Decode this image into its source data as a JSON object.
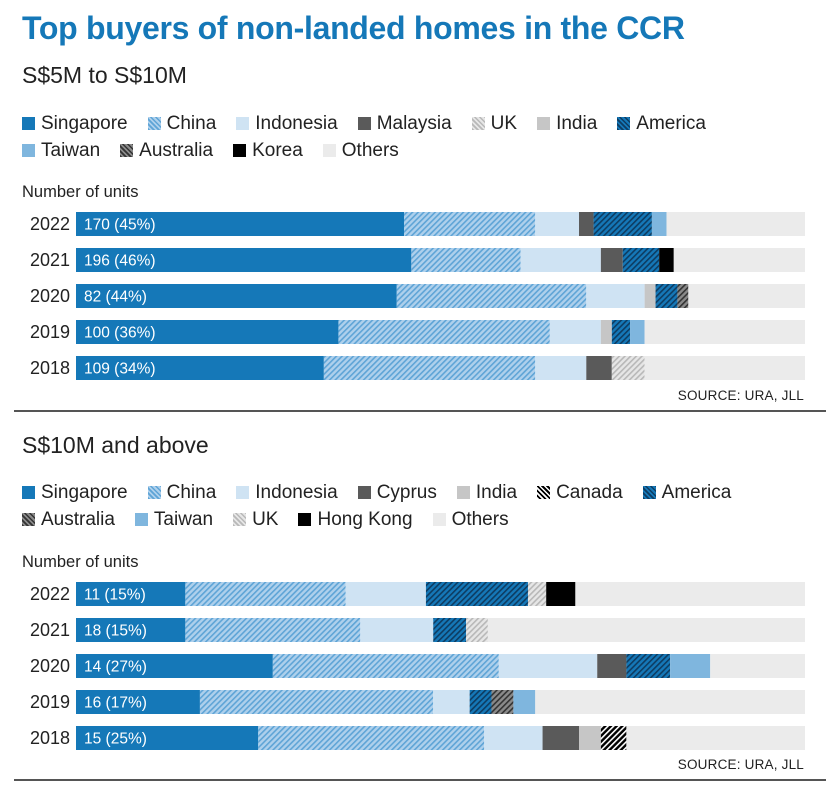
{
  "title": "Top buyers of non-landed homes in the CCR",
  "source": "SOURCE: URA, JLL",
  "number_of_units_label": "Number of units",
  "colors": {
    "Singapore": "#1578b8",
    "China": "hatch:#aed0ec:#5ea4d6",
    "Indonesia": "#cfe3f3",
    "Malaysia": "#5a5a5a",
    "UK": "hatch:#e6e6e6:#b8b8b8",
    "India": "#c6c6c6",
    "America": "hatch:#1578b8:#0d3c62",
    "Taiwan": "#7fb6de",
    "Australia": "hatch:#8a8a8a:#333333",
    "Korea": "#000000",
    "Others": "#ebebeb",
    "Cyprus": "#5a5a5a",
    "Canada": "hatch:#000000:#ffffff",
    "Hong Kong": "#000000"
  },
  "chart_data": [
    {
      "type": "bar",
      "orientation": "horizontal",
      "stacked": true,
      "subtitle": "S$5M to S$10M",
      "legend": [
        "Singapore",
        "China",
        "Indonesia",
        "Malaysia",
        "UK",
        "India",
        "America",
        "Taiwan",
        "Australia",
        "Korea",
        "Others"
      ],
      "legend_rows": [
        [
          "Singapore",
          "China",
          "Indonesia",
          "Malaysia",
          "UK",
          "India",
          "America"
        ],
        [
          "Taiwan",
          "Australia",
          "Korea",
          "Others"
        ]
      ],
      "categories": [
        "2022",
        "2021",
        "2020",
        "2019",
        "2018"
      ],
      "labels": [
        "170 (45%)",
        "196 (46%)",
        "82 (44%)",
        "100 (36%)",
        "109 (34%)"
      ],
      "unit": "share of units (%)",
      "xlim": [
        0,
        100
      ],
      "series": [
        {
          "name": "Singapore",
          "values": [
            45,
            46,
            44,
            36,
            34
          ]
        },
        {
          "name": "China",
          "values": [
            18,
            15,
            26,
            29,
            29
          ]
        },
        {
          "name": "Indonesia",
          "values": [
            6,
            11,
            8,
            7,
            7
          ]
        },
        {
          "name": "Malaysia",
          "values": [
            2,
            3,
            0,
            0,
            3.5
          ]
        },
        {
          "name": "UK",
          "values": [
            0,
            0,
            0,
            0,
            4.5
          ]
        },
        {
          "name": "India",
          "values": [
            0,
            0,
            1.5,
            1.5,
            0
          ]
        },
        {
          "name": "America",
          "values": [
            8,
            5,
            3,
            2.5,
            0
          ]
        },
        {
          "name": "Taiwan",
          "values": [
            2,
            0,
            0,
            2,
            0
          ]
        },
        {
          "name": "Australia",
          "values": [
            0,
            0,
            1.5,
            0,
            0
          ]
        },
        {
          "name": "Korea",
          "values": [
            0,
            2,
            0,
            0,
            0
          ]
        },
        {
          "name": "Others",
          "values": [
            19,
            18,
            16,
            22,
            22
          ]
        }
      ]
    },
    {
      "type": "bar",
      "orientation": "horizontal",
      "stacked": true,
      "subtitle": "S$10M and above",
      "legend": [
        "Singapore",
        "China",
        "Indonesia",
        "Cyprus",
        "India",
        "Canada",
        "America",
        "Australia",
        "Taiwan",
        "UK",
        "Hong Kong",
        "Others"
      ],
      "legend_rows": [
        [
          "Singapore",
          "China",
          "Indonesia",
          "Cyprus",
          "India",
          "Canada",
          "America"
        ],
        [
          "Australia",
          "Taiwan",
          "UK",
          "Hong Kong",
          "Others"
        ]
      ],
      "categories": [
        "2022",
        "2021",
        "2020",
        "2019",
        "2018"
      ],
      "labels": [
        "11 (15%)",
        "18 (15%)",
        "14 (27%)",
        "16 (17%)",
        "15 (25%)"
      ],
      "unit": "share of units (%)",
      "xlim": [
        0,
        100
      ],
      "series": [
        {
          "name": "Singapore",
          "values": [
            15,
            15,
            27,
            17,
            25
          ]
        },
        {
          "name": "China",
          "values": [
            22,
            24,
            31,
            32,
            31
          ]
        },
        {
          "name": "Indonesia",
          "values": [
            11,
            10,
            13.5,
            5,
            8
          ]
        },
        {
          "name": "Cyprus",
          "values": [
            0,
            0,
            4,
            0,
            5
          ]
        },
        {
          "name": "India",
          "values": [
            0,
            0,
            0,
            0,
            3
          ]
        },
        {
          "name": "Canada",
          "values": [
            0,
            0,
            0,
            0,
            3.5
          ]
        },
        {
          "name": "America",
          "values": [
            14,
            4.5,
            6,
            3,
            0
          ]
        },
        {
          "name": "Australia",
          "values": [
            0,
            0,
            0,
            3,
            0
          ]
        },
        {
          "name": "Taiwan",
          "values": [
            0,
            0,
            5.5,
            3,
            0
          ]
        },
        {
          "name": "UK",
          "values": [
            2.5,
            3,
            0,
            0,
            0
          ]
        },
        {
          "name": "Hong Kong",
          "values": [
            4,
            0,
            0,
            0,
            0
          ]
        },
        {
          "name": "Others",
          "values": [
            31.5,
            43.5,
            13,
            37,
            24.5
          ]
        }
      ]
    }
  ]
}
